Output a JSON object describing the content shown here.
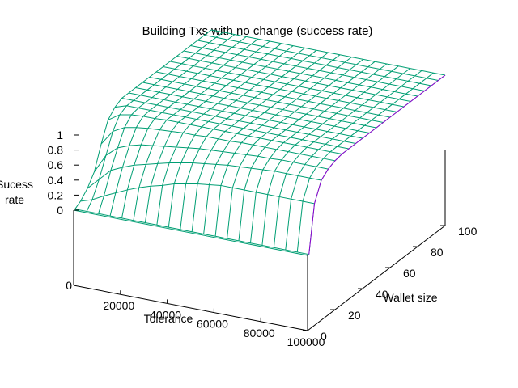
{
  "chart_data": {
    "type": "surface3d",
    "title": "Building Txs with no change (success rate)",
    "xlabel": "Tolerance",
    "ylabel": "Wallet size",
    "zlabel_lines": [
      "Sucess",
      "rate"
    ],
    "xlim": [
      0,
      100000
    ],
    "ylim": [
      0,
      100
    ],
    "zlim": [
      0,
      1
    ],
    "x_ticks": [
      "20000",
      "40000",
      "60000",
      "80000",
      "100000"
    ],
    "y_ticks": [
      "0",
      "20",
      "40",
      "60",
      "80",
      "100"
    ],
    "z_ticks": [
      "0",
      "0.2",
      "0.4",
      "0.6",
      "0.8",
      "1"
    ],
    "base_tick": "0",
    "surface_color": "#009e73",
    "underside_color": "#9400d3",
    "x_samples": [
      0,
      5000,
      10000,
      15000,
      20000,
      25000,
      30000,
      35000,
      40000,
      45000,
      50000,
      55000,
      60000,
      65000,
      70000,
      75000,
      80000,
      85000,
      90000,
      95000,
      100000
    ],
    "y_samples": [
      1,
      5,
      10,
      15,
      20,
      25,
      30,
      35,
      40,
      45,
      50,
      55,
      60,
      65,
      70,
      75,
      80,
      85,
      90,
      95,
      100
    ],
    "success_rate": [
      [
        0.0,
        0.0,
        0.0,
        0.0,
        0.0,
        0.0,
        0.0,
        0.0,
        0.0,
        0.0,
        0.0,
        0.0,
        0.0,
        0.0,
        0.0,
        0.0,
        0.0,
        0.0,
        0.0,
        0.0,
        0.0
      ],
      [
        0.05,
        0.1,
        0.18,
        0.25,
        0.32,
        0.38,
        0.43,
        0.47,
        0.52,
        0.55,
        0.58,
        0.6,
        0.62,
        0.62,
        0.62,
        0.62,
        0.62,
        0.62,
        0.62,
        0.62,
        0.62
      ],
      [
        0.15,
        0.3,
        0.45,
        0.52,
        0.58,
        0.62,
        0.66,
        0.7,
        0.73,
        0.76,
        0.78,
        0.8,
        0.82,
        0.83,
        0.84,
        0.85,
        0.86,
        0.86,
        0.86,
        0.86,
        0.86
      ],
      [
        0.3,
        0.55,
        0.68,
        0.74,
        0.78,
        0.8,
        0.82,
        0.84,
        0.86,
        0.88,
        0.89,
        0.9,
        0.91,
        0.92,
        0.93,
        0.93,
        0.94,
        0.94,
        0.94,
        0.94,
        0.94
      ],
      [
        0.6,
        0.8,
        0.88,
        0.91,
        0.93,
        0.94,
        0.95,
        0.96,
        0.96,
        0.97,
        0.97,
        0.97,
        0.98,
        0.98,
        0.98,
        0.98,
        0.98,
        0.98,
        0.98,
        0.98,
        0.98
      ],
      [
        0.85,
        0.95,
        0.98,
        0.99,
        0.99,
        1.0,
        1.0,
        1.0,
        1.0,
        1.0,
        1.0,
        1.0,
        1.0,
        1.0,
        1.0,
        1.0,
        1.0,
        1.0,
        1.0,
        1.0,
        1.0
      ],
      [
        0.95,
        1.0,
        1.0,
        1.0,
        1.0,
        1.0,
        1.0,
        1.0,
        1.0,
        1.0,
        1.0,
        1.0,
        1.0,
        1.0,
        1.0,
        1.0,
        1.0,
        1.0,
        1.0,
        1.0,
        1.0
      ],
      [
        1.0,
        1.0,
        1.0,
        1.0,
        1.0,
        1.0,
        1.0,
        1.0,
        1.0,
        1.0,
        1.0,
        1.0,
        1.0,
        1.0,
        1.0,
        1.0,
        1.0,
        1.0,
        1.0,
        1.0,
        1.0
      ],
      [
        1.0,
        1.0,
        1.0,
        1.0,
        1.0,
        1.0,
        1.0,
        1.0,
        1.0,
        1.0,
        1.0,
        1.0,
        1.0,
        1.0,
        1.0,
        1.0,
        1.0,
        1.0,
        1.0,
        1.0,
        1.0
      ],
      [
        1.0,
        1.0,
        1.0,
        1.0,
        1.0,
        1.0,
        1.0,
        1.0,
        1.0,
        1.0,
        1.0,
        1.0,
        1.0,
        1.0,
        1.0,
        1.0,
        1.0,
        1.0,
        1.0,
        1.0,
        1.0
      ],
      [
        1.0,
        1.0,
        1.0,
        1.0,
        1.0,
        1.0,
        1.0,
        1.0,
        1.0,
        1.0,
        1.0,
        1.0,
        1.0,
        1.0,
        1.0,
        1.0,
        1.0,
        1.0,
        1.0,
        1.0,
        1.0
      ],
      [
        1.0,
        1.0,
        1.0,
        1.0,
        1.0,
        1.0,
        1.0,
        1.0,
        1.0,
        1.0,
        1.0,
        1.0,
        1.0,
        1.0,
        1.0,
        1.0,
        1.0,
        1.0,
        1.0,
        1.0,
        1.0
      ],
      [
        1.0,
        1.0,
        1.0,
        1.0,
        1.0,
        1.0,
        1.0,
        1.0,
        1.0,
        1.0,
        1.0,
        1.0,
        1.0,
        1.0,
        1.0,
        1.0,
        1.0,
        1.0,
        1.0,
        1.0,
        1.0
      ],
      [
        1.0,
        1.0,
        1.0,
        1.0,
        1.0,
        1.0,
        1.0,
        1.0,
        1.0,
        1.0,
        1.0,
        1.0,
        1.0,
        1.0,
        1.0,
        1.0,
        1.0,
        1.0,
        1.0,
        1.0,
        1.0
      ],
      [
        1.0,
        1.0,
        1.0,
        1.0,
        1.0,
        1.0,
        1.0,
        1.0,
        1.0,
        1.0,
        1.0,
        1.0,
        1.0,
        1.0,
        1.0,
        1.0,
        1.0,
        1.0,
        1.0,
        1.0,
        1.0
      ],
      [
        1.0,
        1.0,
        1.0,
        1.0,
        1.0,
        1.0,
        1.0,
        1.0,
        1.0,
        1.0,
        1.0,
        1.0,
        1.0,
        1.0,
        1.0,
        1.0,
        1.0,
        1.0,
        1.0,
        1.0,
        1.0
      ],
      [
        1.0,
        1.0,
        1.0,
        1.0,
        1.0,
        1.0,
        1.0,
        1.0,
        1.0,
        1.0,
        1.0,
        1.0,
        1.0,
        1.0,
        1.0,
        1.0,
        1.0,
        1.0,
        1.0,
        1.0,
        1.0
      ],
      [
        1.0,
        1.0,
        1.0,
        1.0,
        1.0,
        1.0,
        1.0,
        1.0,
        1.0,
        1.0,
        1.0,
        1.0,
        1.0,
        1.0,
        1.0,
        1.0,
        1.0,
        1.0,
        1.0,
        1.0,
        1.0
      ],
      [
        1.0,
        1.0,
        1.0,
        1.0,
        1.0,
        1.0,
        1.0,
        1.0,
        1.0,
        1.0,
        1.0,
        1.0,
        1.0,
        1.0,
        1.0,
        1.0,
        1.0,
        1.0,
        1.0,
        1.0,
        1.0
      ],
      [
        1.0,
        1.0,
        1.0,
        1.0,
        1.0,
        1.0,
        1.0,
        1.0,
        1.0,
        1.0,
        1.0,
        1.0,
        1.0,
        1.0,
        1.0,
        1.0,
        1.0,
        1.0,
        1.0,
        1.0,
        1.0
      ],
      [
        1.0,
        1.0,
        1.0,
        1.0,
        1.0,
        1.0,
        1.0,
        1.0,
        1.0,
        1.0,
        1.0,
        1.0,
        1.0,
        1.0,
        1.0,
        1.0,
        1.0,
        1.0,
        1.0,
        1.0,
        1.0
      ]
    ]
  }
}
